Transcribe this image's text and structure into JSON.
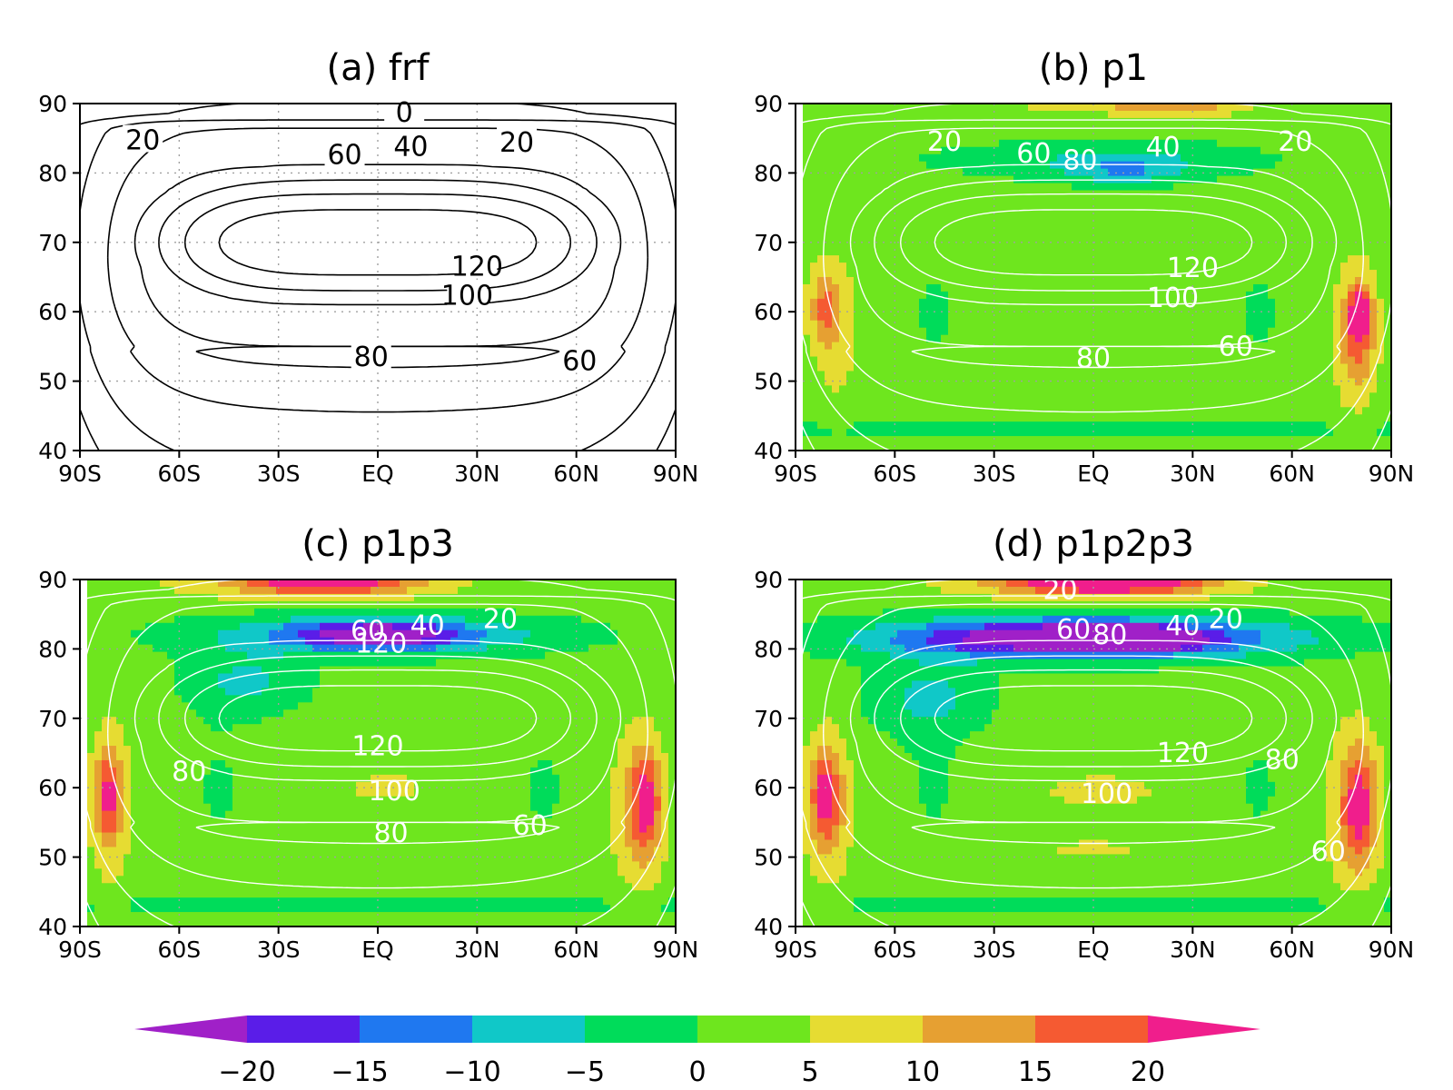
{
  "chart_data": {
    "type": "heatmap",
    "description_units": "contour lines = mean field (frf); shading = difference from frf",
    "x_ticks": [
      "90S",
      "60S",
      "30S",
      "EQ",
      "30N",
      "60N",
      "90N"
    ],
    "x_values": [
      -90,
      -60,
      -30,
      0,
      30,
      60,
      90
    ],
    "y_ticks": [
      "40",
      "50",
      "60",
      "70",
      "80",
      "90"
    ],
    "y_values": [
      40,
      50,
      60,
      70,
      80,
      90
    ],
    "xlim": [
      -90,
      90
    ],
    "ylim": [
      40,
      90
    ],
    "grid": "dotted",
    "contour_levels": [
      0,
      20,
      40,
      60,
      80,
      100,
      120
    ],
    "colorbar": {
      "labels": [
        "-20",
        "-15",
        "-10",
        "-5",
        "0",
        "5",
        "10",
        "15",
        "20"
      ],
      "boundaries": [
        -20,
        -15,
        -10,
        -5,
        0,
        5,
        10,
        15,
        20
      ],
      "colors": [
        "#a020c8",
        "#5a1de8",
        "#1f78f0",
        "#10c8c8",
        "#00dc5a",
        "#6ee61e",
        "#e6dc32",
        "#e6a032",
        "#f55a32",
        "#f01e8c"
      ],
      "extend": "both",
      "placement": "bottom"
    },
    "panels": [
      {
        "title": "(a)  frf",
        "shaded": false,
        "contour_color": "#000000",
        "contour_labels": [
          "0",
          "20",
          "60",
          "40",
          "20",
          "120",
          "100",
          "80",
          "60"
        ],
        "contour_label_values": [
          0,
          20,
          60,
          40,
          20,
          120,
          100,
          80,
          60
        ],
        "contour_label_pos": [
          [
            8,
            88.7
          ],
          [
            -71,
            84.7
          ],
          [
            -10,
            82.6
          ],
          [
            10,
            83.8
          ],
          [
            42,
            84.4
          ],
          [
            30,
            66.5
          ],
          [
            27,
            62.3
          ],
          [
            -2,
            53.5
          ],
          [
            61,
            52.9
          ]
        ],
        "features": []
      },
      {
        "title": "(b)  p1",
        "shaded": true,
        "contour_color": "#ffffff",
        "contour_labels": [
          "20",
          "60",
          "80",
          "40",
          "20",
          "120",
          "100",
          "60",
          "80"
        ],
        "contour_label_values": [
          20,
          60,
          80,
          40,
          20,
          120,
          100,
          60,
          80
        ],
        "contour_label_pos": [
          [
            -45,
            84.5
          ],
          [
            -18,
            82.8
          ],
          [
            -4,
            81.8
          ],
          [
            21,
            83.7
          ],
          [
            61,
            84.5
          ],
          [
            30,
            66.3
          ],
          [
            24,
            62.0
          ],
          [
            43,
            55.0
          ],
          [
            0,
            53.3
          ]
        ],
        "features": [
          {
            "x": [
              -40,
              40
            ],
            "y": [
              89,
              92
            ],
            "v": 8
          },
          {
            "x": [
              4,
              44
            ],
            "y": [
              88,
              92
            ],
            "v": 13
          },
          {
            "x": [
              -8,
              28
            ],
            "y": [
              78,
              82
            ],
            "v": -4
          },
          {
            "x": [
              -22,
              36
            ],
            "y": [
              79,
              84
            ],
            "v": -3
          },
          {
            "x": [
              -25,
              30
            ],
            "y": [
              58,
              72
            ],
            "v": 3.5
          },
          {
            "x": [
              -85,
              -70
            ],
            "y": [
              46,
              68
            ],
            "v": 7
          },
          {
            "x": [
              -86,
              -76
            ],
            "y": [
              55,
              66
            ],
            "v": 14
          },
          {
            "x": [
              72,
              86
            ],
            "y": [
              44,
              67
            ],
            "v": 8
          },
          {
            "x": [
              75,
              85
            ],
            "y": [
              50,
              65
            ],
            "v": 15
          },
          {
            "x": [
              78,
              84
            ],
            "y": [
              57,
              63
            ],
            "v": 19
          }
        ]
      },
      {
        "title": "(c)  p1p3",
        "shaded": true,
        "contour_color": "#ffffff",
        "contour_labels": [
          "60",
          "40",
          "20",
          "120",
          "120",
          "80",
          "100",
          "80",
          "60"
        ],
        "contour_label_pos": [
          [
            -3,
            82.6
          ],
          [
            15,
            83.4
          ],
          [
            37,
            84.3
          ],
          [
            1,
            80.8
          ],
          [
            0,
            66.0
          ],
          [
            -57,
            62.3
          ],
          [
            5,
            59.5
          ],
          [
            4,
            53.5
          ],
          [
            46,
            54.5
          ]
        ],
        "contour_label_values": [
          60,
          40,
          20,
          120,
          120,
          80,
          100,
          80,
          60
        ],
        "features": [
          {
            "x": [
              -60,
              20
            ],
            "y": [
              87,
              92
            ],
            "v": 12
          },
          {
            "x": [
              -40,
              10
            ],
            "y": [
              88,
              92
            ],
            "v": 19
          },
          {
            "x": [
              -50,
              50
            ],
            "y": [
              79,
              85
            ],
            "v": -8
          },
          {
            "x": [
              -25,
              25
            ],
            "y": [
              80,
              84
            ],
            "v": -14
          },
          {
            "x": [
              -60,
              -20
            ],
            "y": [
              70,
              80
            ],
            "v": -6
          },
          {
            "x": [
              -15,
              20
            ],
            "y": [
              57,
              63
            ],
            "v": 6
          },
          {
            "x": [
              -87,
              -74
            ],
            "y": [
              45,
              69
            ],
            "v": 8
          },
          {
            "x": [
              -86,
              -77
            ],
            "y": [
              52,
              66
            ],
            "v": 17
          },
          {
            "x": [
              70,
              86
            ],
            "y": [
              44,
              69
            ],
            "v": 9
          },
          {
            "x": [
              76,
              86
            ],
            "y": [
              50,
              66
            ],
            "v": 19
          }
        ]
      },
      {
        "title": "(d)  p1p2p3",
        "shaded": true,
        "contour_color": "#ffffff",
        "contour_labels": [
          "20",
          "60",
          "80",
          "40",
          "20",
          "120",
          "80",
          "100",
          "60"
        ],
        "contour_label_pos": [
          [
            -10,
            88.5
          ],
          [
            -6,
            82.8
          ],
          [
            5,
            82.0
          ],
          [
            27,
            83.3
          ],
          [
            40,
            84.3
          ],
          [
            27,
            65.0
          ],
          [
            57,
            64.0
          ],
          [
            4,
            59.1
          ],
          [
            71,
            50.8
          ]
        ],
        "contour_label_values": [
          20,
          60,
          80,
          40,
          20,
          120,
          80,
          100,
          60
        ],
        "features": [
          {
            "x": [
              -40,
              40
            ],
            "y": [
              87,
              92
            ],
            "v": 14
          },
          {
            "x": [
              -25,
              35
            ],
            "y": [
              88,
              92
            ],
            "v": 21
          },
          {
            "x": [
              -75,
              75
            ],
            "y": [
              78,
              85
            ],
            "v": -9
          },
          {
            "x": [
              -55,
              40
            ],
            "y": [
              79,
              84
            ],
            "v": -15
          },
          {
            "x": [
              -10,
              30
            ],
            "y": [
              80,
              83
            ],
            "v": -19
          },
          {
            "x": [
              -70,
              -30
            ],
            "y": [
              67,
              79
            ],
            "v": -6
          },
          {
            "x": [
              -25,
              30
            ],
            "y": [
              56,
              63
            ],
            "v": 6
          },
          {
            "x": [
              -20,
              20
            ],
            "y": [
              49,
              53
            ],
            "v": 6
          },
          {
            "x": [
              -87,
              -73
            ],
            "y": [
              44,
              69
            ],
            "v": 9
          },
          {
            "x": [
              -86,
              -76
            ],
            "y": [
              52,
              66
            ],
            "v": 18
          },
          {
            "x": [
              70,
              86
            ],
            "y": [
              43,
              69
            ],
            "v": 9
          },
          {
            "x": [
              75,
              86
            ],
            "y": [
              49,
              66
            ],
            "v": 19
          }
        ]
      }
    ]
  }
}
